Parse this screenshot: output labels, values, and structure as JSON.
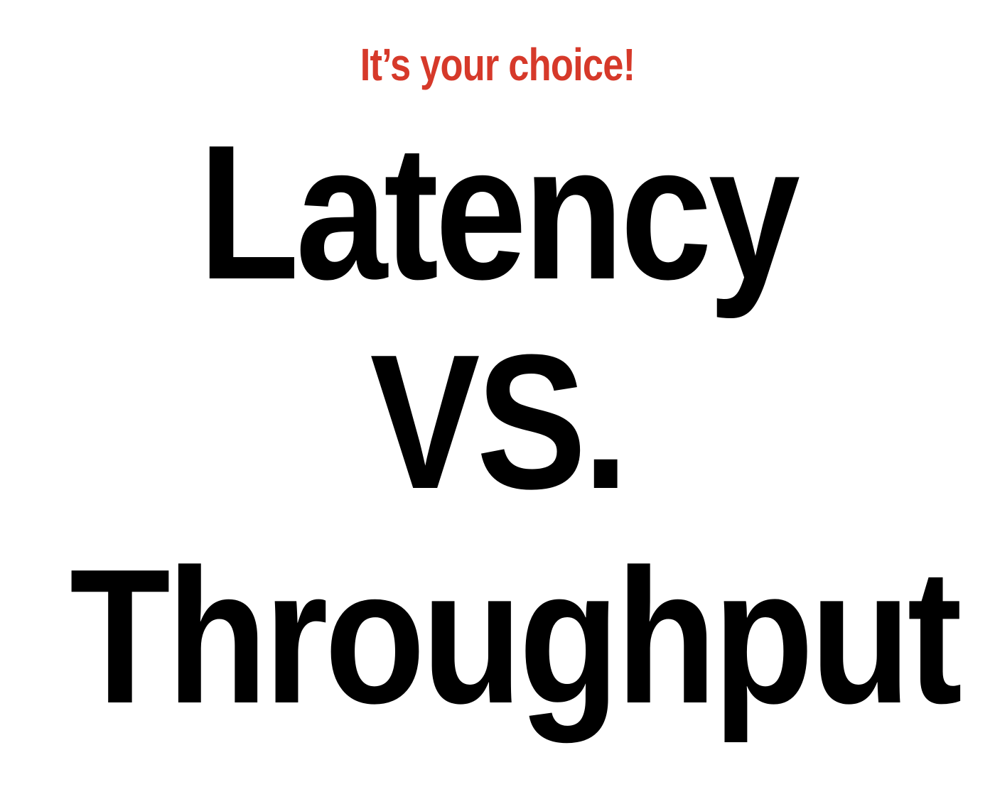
{
  "slide": {
    "tagline": "It’s your choice!",
    "headline": {
      "line1": "Latency",
      "line2": "VS.",
      "line3": "Throughput"
    }
  },
  "colors": {
    "accent": "#d6392a",
    "text": "#000000",
    "background": "#ffffff"
  }
}
